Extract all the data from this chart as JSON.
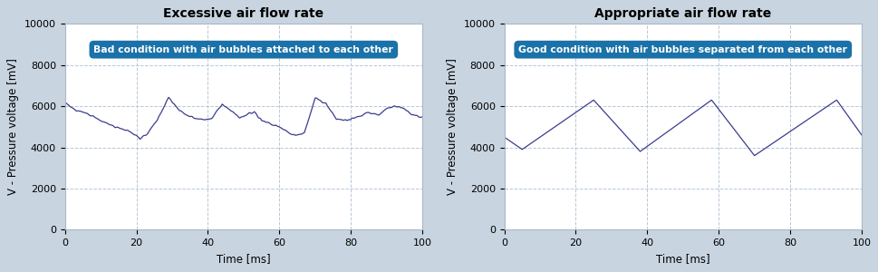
{
  "title1": "Excessive air flow rate",
  "title2": "Appropriate air flow rate",
  "xlabel": "Time [ms]",
  "ylabel": "V - Pressure voltage [mV]",
  "annotation1": "Bad condition with air bubbles attached to each other",
  "annotation2": "Good condition with air bubbles separated from each other",
  "xlim": [
    0,
    100
  ],
  "ylim": [
    0,
    10000
  ],
  "yticks": [
    0,
    2000,
    4000,
    6000,
    8000,
    10000
  ],
  "xticks": [
    0,
    20,
    40,
    60,
    80,
    100
  ],
  "line_color": "#3c3c8f",
  "bg_color": "#c8d4e0",
  "plot_bg_color": "#ffffff",
  "annotation_bg": "#1a72a8",
  "annotation_text_color": "#ffffff",
  "grid_color": "#b8c8d8",
  "title_fontsize": 10,
  "label_fontsize": 8.5,
  "tick_fontsize": 8,
  "left_keypoints": [
    [
      0,
      6200
    ],
    [
      3,
      5800
    ],
    [
      7,
      5600
    ],
    [
      10,
      5300
    ],
    [
      14,
      5000
    ],
    [
      18,
      4800
    ],
    [
      21,
      4450
    ],
    [
      23,
      4650
    ],
    [
      26,
      5400
    ],
    [
      29,
      6400
    ],
    [
      32,
      5800
    ],
    [
      35,
      5500
    ],
    [
      37,
      5400
    ],
    [
      39,
      5350
    ],
    [
      41,
      5400
    ],
    [
      44,
      6100
    ],
    [
      47,
      5700
    ],
    [
      49,
      5400
    ],
    [
      51,
      5600
    ],
    [
      53,
      5750
    ],
    [
      55,
      5300
    ],
    [
      60,
      5000
    ],
    [
      63,
      4650
    ],
    [
      65,
      4600
    ],
    [
      67,
      4700
    ],
    [
      70,
      6400
    ],
    [
      73,
      6100
    ],
    [
      76,
      5400
    ],
    [
      79,
      5300
    ],
    [
      82,
      5500
    ],
    [
      85,
      5700
    ],
    [
      88,
      5600
    ],
    [
      90,
      5900
    ],
    [
      92,
      6000
    ],
    [
      95,
      5900
    ],
    [
      97,
      5600
    ],
    [
      99,
      5500
    ],
    [
      100,
      5450
    ]
  ],
  "right_keypoints": [
    [
      0,
      4500
    ],
    [
      5,
      3900
    ],
    [
      25,
      6300
    ],
    [
      38,
      3800
    ],
    [
      58,
      6300
    ],
    [
      70,
      3600
    ],
    [
      93,
      6300
    ],
    [
      100,
      4600
    ]
  ]
}
